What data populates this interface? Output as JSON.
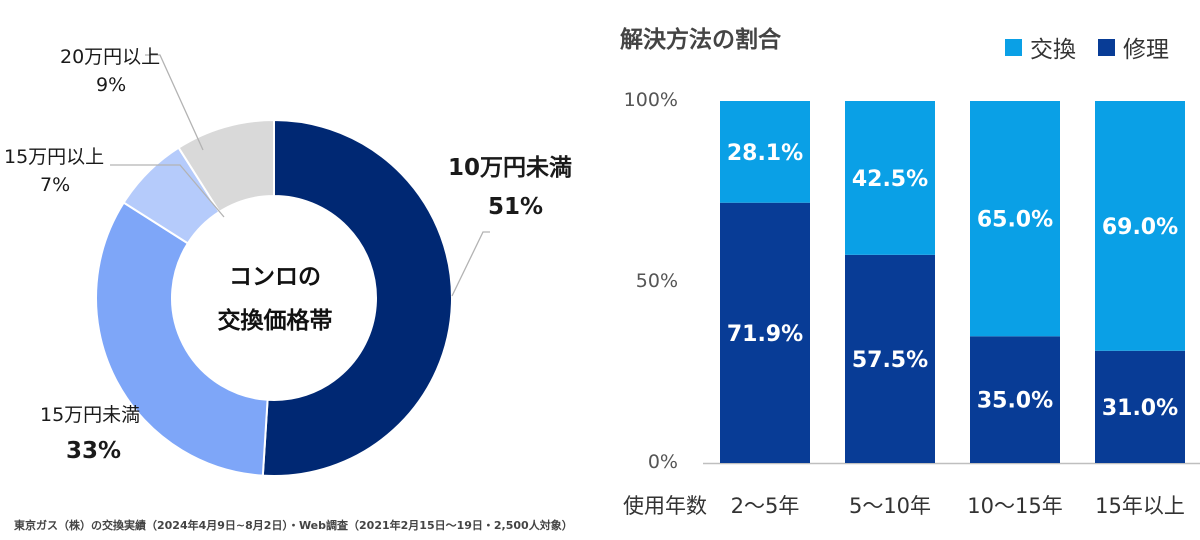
{
  "footnote": "東京ガス（株）の交換実績（2024年4月9日~8月2日）・Web調査（2021年2月15日～19日・2,500人対象）",
  "chart_data": [
    {
      "type": "pie",
      "title": "コンロの",
      "subtitle": "交換価格帯",
      "donut": true,
      "slices": [
        {
          "name": "10万円未満",
          "value": 51,
          "label": "51%",
          "color": "#002873"
        },
        {
          "name": "15万円未満",
          "value": 33,
          "label": "33%",
          "color": "#7ea6f8"
        },
        {
          "name": "15万円以上",
          "value": 7,
          "label": "7%",
          "color": "#b5cbfb"
        },
        {
          "name": "20万円以上",
          "value": 9,
          "label": "9%",
          "color": "#d9d9d9"
        }
      ]
    },
    {
      "type": "bar",
      "stacked": true,
      "title": "解決方法の割合",
      "xlabel": "使用年数",
      "categories": [
        "2～5年",
        "5～10年",
        "10～15年",
        "15年以上"
      ],
      "ylim": [
        0,
        100
      ],
      "yticks": [
        "0%",
        "50%",
        "100%"
      ],
      "legend_placement": "top-right",
      "series": [
        {
          "name": "修理",
          "values": [
            71.9,
            57.5,
            35.0,
            31.0
          ],
          "labels": [
            "71.9%",
            "57.5%",
            "35.0%",
            "31.0%"
          ],
          "color": "#083c96"
        },
        {
          "name": "交換",
          "values": [
            28.1,
            42.5,
            65.0,
            69.0
          ],
          "labels": [
            "28.1%",
            "42.5%",
            "65.0%",
            "69.0%"
          ],
          "color": "#0aa0e6"
        }
      ]
    }
  ]
}
